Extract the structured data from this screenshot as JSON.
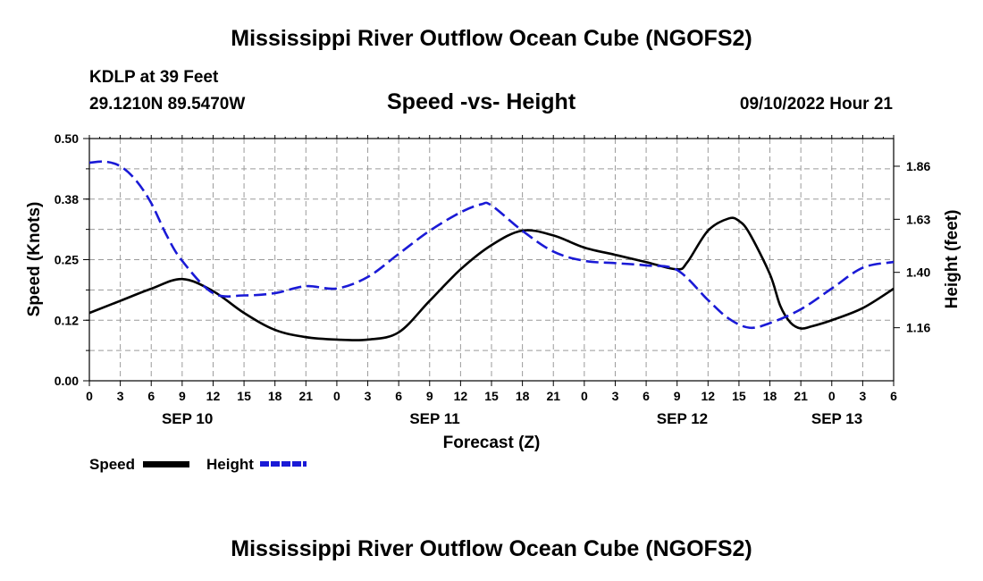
{
  "header": {
    "main_title": "Mississippi River Outflow Ocean Cube (NGOFS2)",
    "station": "KDLP at 39 Feet",
    "coords": "29.1210N  89.5470W",
    "plot_title": "Speed -vs- Height",
    "timestamp": "09/10/2022 Hour 21",
    "footer_title": "Mississippi River Outflow Ocean Cube (NGOFS2)"
  },
  "legend": {
    "speed_label": "Speed",
    "height_label": "Height"
  },
  "colors": {
    "speed": "#000000",
    "height": "#1a1ad6",
    "grid": "#9a9a9a"
  },
  "chart_data": {
    "type": "line",
    "xlabel": "Forecast (Z)",
    "ylabel_left": "Speed (Knots)",
    "ylabel_right": "Height (feet)",
    "grid": true,
    "x_ticks": [
      "0",
      "3",
      "6",
      "9",
      "12",
      "15",
      "18",
      "21",
      "0",
      "3",
      "6",
      "9",
      "12",
      "15",
      "18",
      "21",
      "0",
      "3",
      "6",
      "9",
      "12",
      "15",
      "18",
      "21",
      "0",
      "3",
      "6"
    ],
    "date_labels": [
      {
        "label": "SEP 10",
        "x_hour": 9.5
      },
      {
        "label": "SEP 11",
        "x_hour": 33.5
      },
      {
        "label": "SEP 12",
        "x_hour": 57.5
      },
      {
        "label": "SEP 13",
        "x_hour": 72.5
      }
    ],
    "xlim": [
      0,
      78
    ],
    "ylim_left": [
      0.0,
      0.5
    ],
    "yticks_left": [
      "0.00",
      "0.12",
      "0.25",
      "0.38",
      "0.50"
    ],
    "ylim_right": [
      0.93,
      1.98
    ],
    "yticks_right": [
      "1.16",
      "1.40",
      "1.63",
      "1.86"
    ],
    "series": [
      {
        "name": "Speed",
        "axis": "left",
        "x": [
          0,
          3,
          6,
          9,
          12,
          15,
          18,
          21,
          24,
          27,
          30,
          33,
          36,
          39,
          42,
          45,
          48,
          51,
          54,
          57,
          58,
          60,
          62,
          63,
          64,
          66,
          67,
          68,
          69,
          70,
          72,
          75,
          78
        ],
        "values": [
          0.14,
          0.165,
          0.19,
          0.21,
          0.185,
          0.14,
          0.105,
          0.09,
          0.085,
          0.085,
          0.1,
          0.165,
          0.23,
          0.28,
          0.31,
          0.3,
          0.275,
          0.26,
          0.245,
          0.23,
          0.245,
          0.31,
          0.335,
          0.33,
          0.305,
          0.22,
          0.155,
          0.12,
          0.108,
          0.112,
          0.125,
          0.15,
          0.19
        ]
      },
      {
        "name": "Height",
        "axis": "right",
        "x": [
          0,
          1.5,
          3,
          4.5,
          6,
          7.5,
          9,
          12,
          15,
          18,
          21,
          24,
          27,
          30,
          33,
          36,
          38,
          39,
          42,
          45,
          48,
          51,
          54,
          57,
          60,
          62,
          64,
          66,
          69,
          72,
          75,
          78
        ],
        "values": [
          1.875,
          1.88,
          1.86,
          1.8,
          1.7,
          1.56,
          1.45,
          1.31,
          1.3,
          1.31,
          1.34,
          1.33,
          1.38,
          1.48,
          1.58,
          1.66,
          1.695,
          1.69,
          1.58,
          1.49,
          1.45,
          1.44,
          1.43,
          1.41,
          1.28,
          1.2,
          1.16,
          1.18,
          1.24,
          1.33,
          1.42,
          1.445
        ]
      }
    ]
  }
}
